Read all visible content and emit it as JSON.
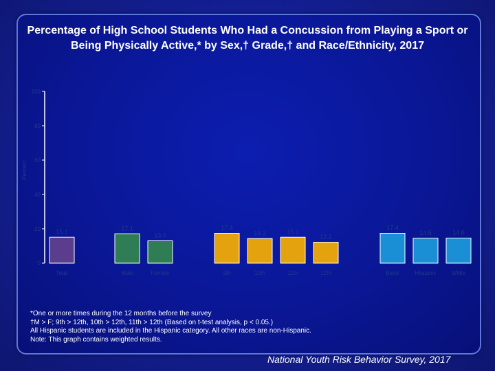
{
  "slide": {
    "title": "Percentage of High School Students Who Had a Concussion from Playing a Sport or Being Physically Active,* by Sex,† Grade,† and Race/Ethnicity, 2017",
    "notes": [
      "*One or more times during the 12 months before the survey",
      "†M > F; 9th > 12th, 10th > 12th, 11th > 12th (Based on t-test analysis, p < 0.05.)",
      "All Hispanic students are included in the Hispanic category.  All other races are non-Hispanic.",
      "Note: This graph contains weighted results."
    ],
    "footer": "National Youth Risk Behavior Survey, 2017"
  },
  "chart_data": {
    "type": "bar",
    "ylabel": "Percent",
    "ylim": [
      0,
      100
    ],
    "yticks": [
      "0",
      "20",
      "40",
      "60",
      "80",
      "100"
    ],
    "categories": [
      "Total",
      "Male",
      "Female",
      "9th",
      "10th",
      "11th",
      "12th",
      "Black",
      "Hispanic",
      "White"
    ],
    "values": [
      15.1,
      17.1,
      13.0,
      17.4,
      14.3,
      15.1,
      12.2,
      17.4,
      14.5,
      14.6
    ],
    "value_labels": [
      "15.1",
      "17.1",
      "13.0",
      "17.4",
      "14.3",
      "15.1",
      "12.2",
      "17.4",
      "14.5",
      "14.6"
    ],
    "groups": [
      "total",
      "sex",
      "sex",
      "grade",
      "grade",
      "grade",
      "grade",
      "race",
      "race",
      "race"
    ],
    "colors": {
      "total": "#5a3d8c",
      "sex": "#2e7d55",
      "grade": "#e3a20e",
      "race": "#1a8fd6",
      "axis": "#ffffff",
      "faint_text": "#1f3a8c"
    }
  }
}
